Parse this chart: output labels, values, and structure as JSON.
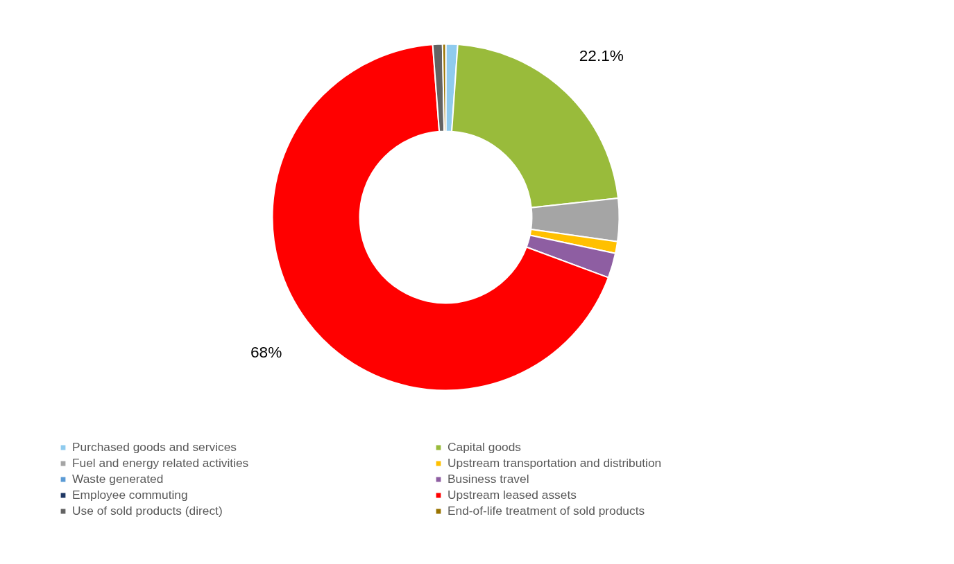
{
  "chart_data": {
    "type": "donut",
    "categories": [
      "Purchased goods and services",
      "Capital goods",
      "Fuel and energy related activities",
      "Upstream transportation and distribution",
      "Waste generated",
      "Business travel",
      "Employee commuting",
      "Upstream leased assets",
      "Use of sold products (direct)",
      "End-of-life treatment of sold products"
    ],
    "values": [
      1.1,
      22.1,
      4.0,
      1.1,
      null,
      2.3,
      null,
      68,
      0.9,
      0.3
    ],
    "colors": [
      "#8fcbee",
      "#99bb3b",
      "#a5a5a5",
      "#ffc000",
      "#5b9bd5",
      "#8e5ea2",
      "#1f3864",
      "#ff0000",
      "#636363",
      "#997300"
    ],
    "value_labels": [
      null,
      "22.1%",
      null,
      null,
      null,
      null,
      null,
      "68%",
      null,
      null
    ],
    "legend": "bottom"
  }
}
